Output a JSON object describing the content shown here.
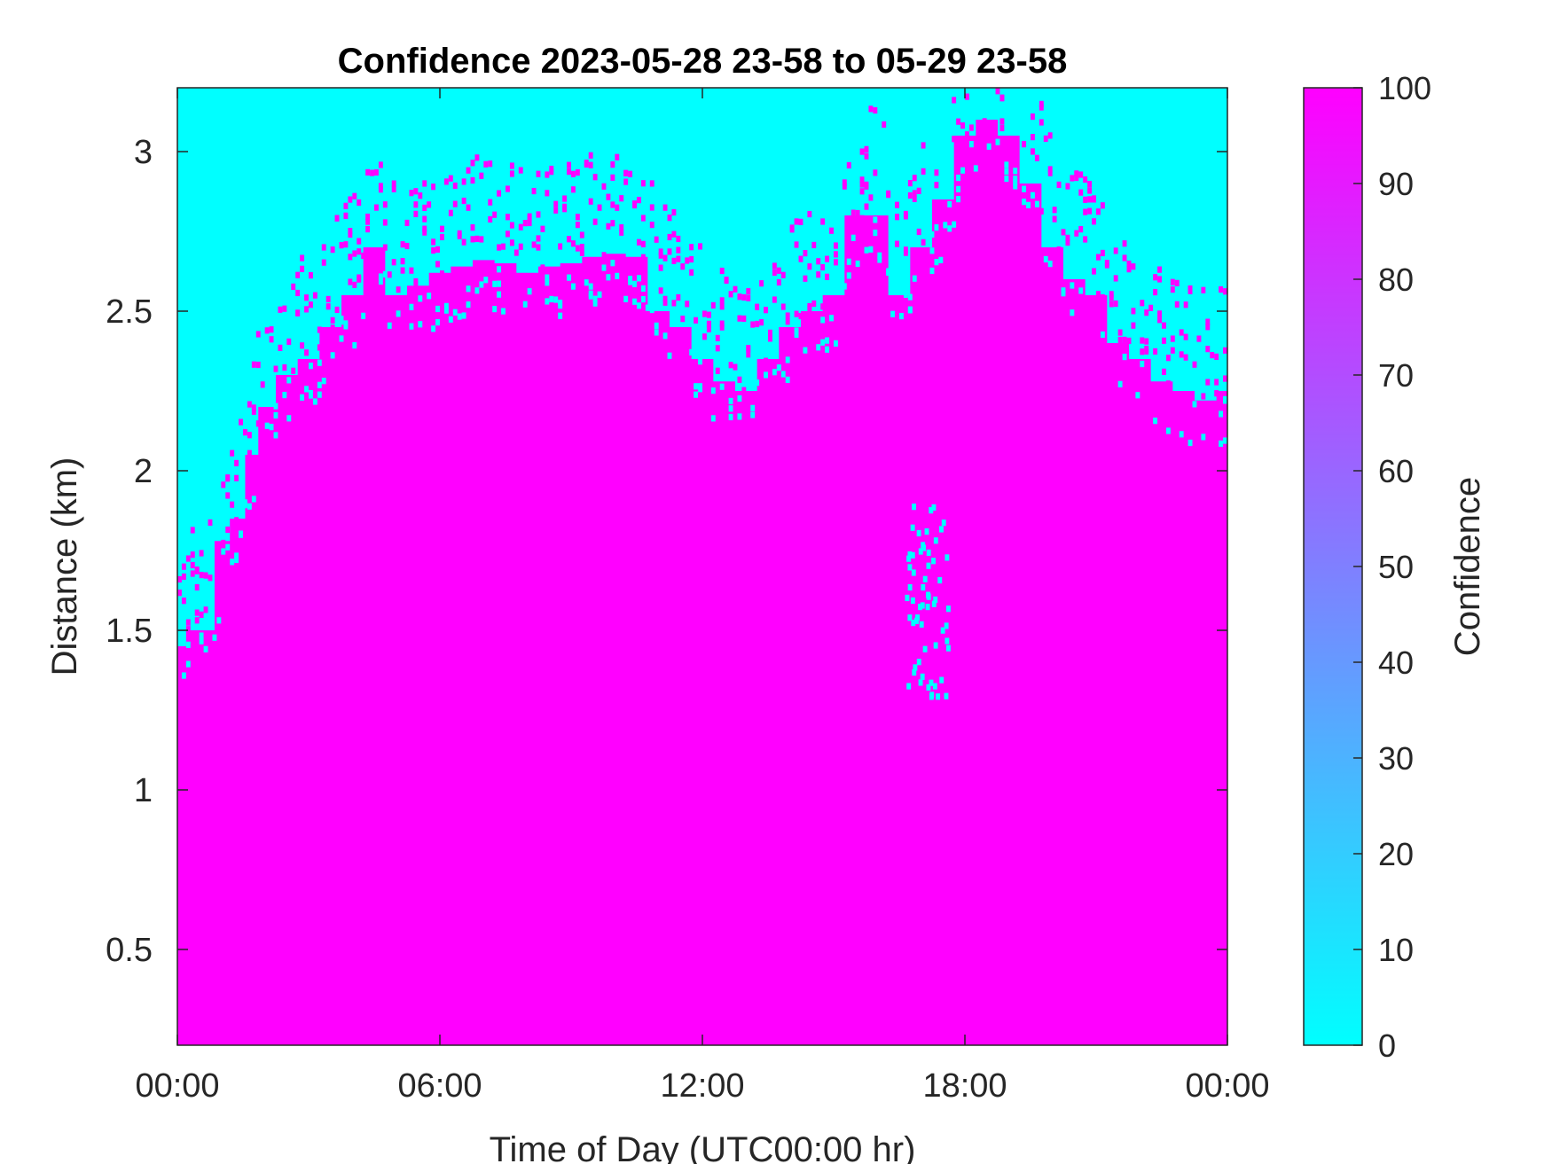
{
  "chart_data": {
    "type": "heatmap",
    "title": "Confidence 2023-05-28 23-58 to 05-29 23-58",
    "xlabel": "Time of Day (UTC00:00 hr)",
    "ylabel": "Distance (km)",
    "x_ticks": [
      "00:00",
      "06:00",
      "12:00",
      "18:00",
      "00:00"
    ],
    "x_tick_hours": [
      0,
      6,
      12,
      18,
      24
    ],
    "xlim_hours": [
      0,
      24
    ],
    "y_ticks": [
      "0.5",
      "1",
      "1.5",
      "2",
      "2.5",
      "3"
    ],
    "y_tick_values": [
      0.5,
      1,
      1.5,
      2,
      2.5,
      3
    ],
    "ylim_km": [
      0.2,
      3.2
    ],
    "colorbar": {
      "label": "Confidence",
      "ticks": [
        "0",
        "10",
        "20",
        "30",
        "40",
        "50",
        "60",
        "70",
        "80",
        "90",
        "100"
      ],
      "tick_values": [
        0,
        10,
        20,
        30,
        40,
        50,
        60,
        70,
        80,
        90,
        100
      ],
      "range": [
        0,
        100
      ],
      "colormap": "cool",
      "low_color": "#00ffff",
      "high_color": "#ff00ff"
    },
    "grid": false,
    "values_description": "Binary-looking field: confidence ~100 (magenta) below a time-varying top boundary, ~0 (cyan) above it.",
    "top_boundary_km": {
      "hours": [
        0.0,
        0.4,
        0.7,
        1.0,
        1.4,
        1.7,
        2.0,
        2.5,
        3.0,
        3.5,
        4.0,
        4.5,
        5.0,
        5.5,
        6.0,
        6.5,
        7.0,
        7.5,
        8.0,
        8.5,
        9.0,
        9.5,
        10.0,
        10.5,
        11.0,
        11.5,
        12.0,
        12.5,
        13.0,
        13.5,
        14.0,
        14.5,
        15.0,
        15.5,
        16.0,
        16.5,
        17.0,
        17.5,
        18.0,
        18.5,
        19.0,
        19.5,
        20.0,
        20.5,
        21.0,
        21.5,
        22.0,
        22.5,
        23.0,
        23.5,
        24.0
      ],
      "km": [
        1.45,
        1.5,
        1.5,
        1.78,
        1.85,
        2.05,
        2.2,
        2.3,
        2.35,
        2.45,
        2.55,
        2.7,
        2.55,
        2.58,
        2.62,
        2.64,
        2.66,
        2.65,
        2.62,
        2.64,
        2.65,
        2.67,
        2.68,
        2.67,
        2.5,
        2.45,
        2.35,
        2.28,
        2.25,
        2.35,
        2.45,
        2.5,
        2.55,
        2.8,
        2.8,
        2.55,
        2.7,
        2.85,
        3.05,
        3.1,
        3.05,
        2.9,
        2.7,
        2.6,
        2.55,
        2.4,
        2.35,
        2.28,
        2.25,
        2.22,
        2.25
      ]
    }
  }
}
